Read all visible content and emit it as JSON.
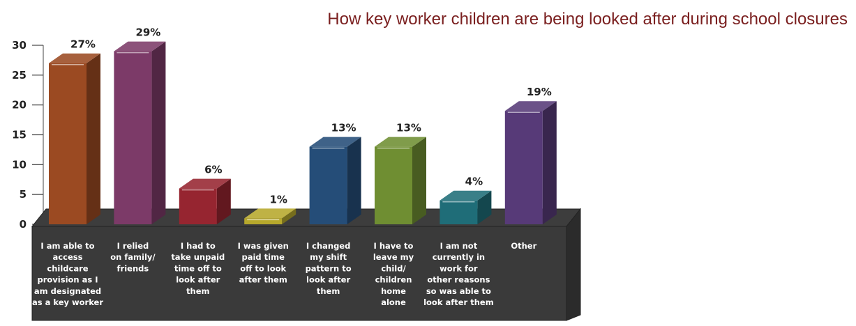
{
  "chart_data": {
    "type": "bar",
    "title": "How key worker children are being looked after during school closures",
    "xlabel": "",
    "ylabel": "",
    "ylim": [
      0,
      30
    ],
    "yticks": [
      0,
      5,
      10,
      15,
      20,
      25,
      30
    ],
    "categories": [
      [
        "I am able to",
        "access",
        "childcare",
        "provision as I",
        "am designated",
        "as a key worker"
      ],
      [
        "I relied",
        "on family/",
        "friends"
      ],
      [
        "I had to",
        "take unpaid",
        "time off to",
        "look after",
        "them"
      ],
      [
        "I was given",
        "paid time",
        "off to look",
        "after them"
      ],
      [
        "I changed",
        "my shift",
        "pattern to",
        "look after",
        "them"
      ],
      [
        "I have to",
        "leave my",
        "child/",
        "children",
        "home",
        "alone"
      ],
      [
        "I am not",
        "currently in",
        "work for",
        "other reasons",
        "so was able to",
        "look after them"
      ],
      [
        "Other"
      ]
    ],
    "values": [
      27,
      29,
      6,
      1,
      13,
      13,
      4,
      19
    ],
    "value_labels": [
      "27%",
      "29%",
      "6%",
      "1%",
      "13%",
      "13%",
      "4%",
      "19%"
    ],
    "colors": [
      "#9b4a22",
      "#7c3a68",
      "#962530",
      "#b6a82c",
      "#254d78",
      "#6f8e32",
      "#1f6d78",
      "#573a78"
    ],
    "grid": false
  }
}
